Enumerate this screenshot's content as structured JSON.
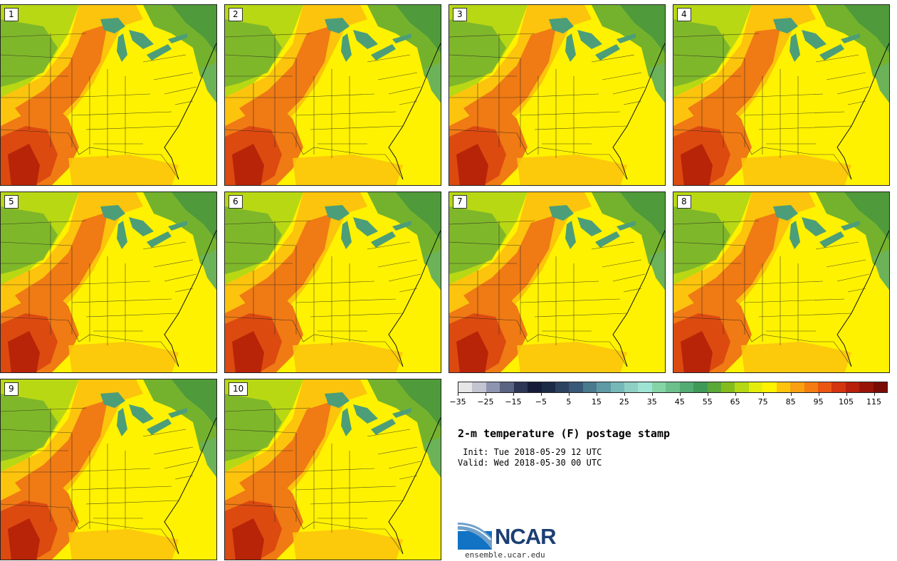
{
  "panels": [
    {
      "label": "1"
    },
    {
      "label": "2"
    },
    {
      "label": "3"
    },
    {
      "label": "4"
    },
    {
      "label": "5"
    },
    {
      "label": "6"
    },
    {
      "label": "7"
    },
    {
      "label": "8"
    },
    {
      "label": "9"
    },
    {
      "label": "10"
    }
  ],
  "colorbar": {
    "min": -35,
    "max": 120,
    "step": 5,
    "tick_labels": [
      "−35",
      "−25",
      "−15",
      "−5",
      "5",
      "15",
      "25",
      "35",
      "45",
      "55",
      "65",
      "75",
      "85",
      "95",
      "105",
      "115"
    ],
    "tick_values": [
      -35,
      -25,
      -15,
      -5,
      5,
      15,
      25,
      35,
      45,
      55,
      65,
      75,
      85,
      95,
      105,
      115
    ],
    "colors": [
      "#e6e6e6",
      "#c4c4d0",
      "#8e94b0",
      "#5c6484",
      "#2e3656",
      "#161c38",
      "#1c2a48",
      "#2c4260",
      "#3a5878",
      "#4a7a8e",
      "#5e9aa4",
      "#76b8b8",
      "#8ed0c4",
      "#9ee4d4",
      "#84d4a8",
      "#6cc08c",
      "#52ac74",
      "#3e9a58",
      "#5aa838",
      "#84bc1c",
      "#b4d814",
      "#e4ec0c",
      "#fff200",
      "#fcc40c",
      "#f8a010",
      "#f47c12",
      "#ea5612",
      "#d43410",
      "#b6200c",
      "#981408",
      "#7a0c06"
    ]
  },
  "title": "2-m temperature (F) postage stamp",
  "init": " Init: Tue 2018-05-29 12 UTC",
  "valid": "Valid: Wed 2018-05-30 00 UTC",
  "logo": {
    "name": "NCAR",
    "url": "ensemble.ucar.edu",
    "color": "#1c3f73"
  },
  "map_colors": {
    "hot": "#b82408",
    "warm": "#f07a14",
    "mild": "#fcc40c",
    "neutral": "#fff200",
    "cool": "#b8d814",
    "cold": "#74b22e",
    "lake": "#4c9e78"
  }
}
